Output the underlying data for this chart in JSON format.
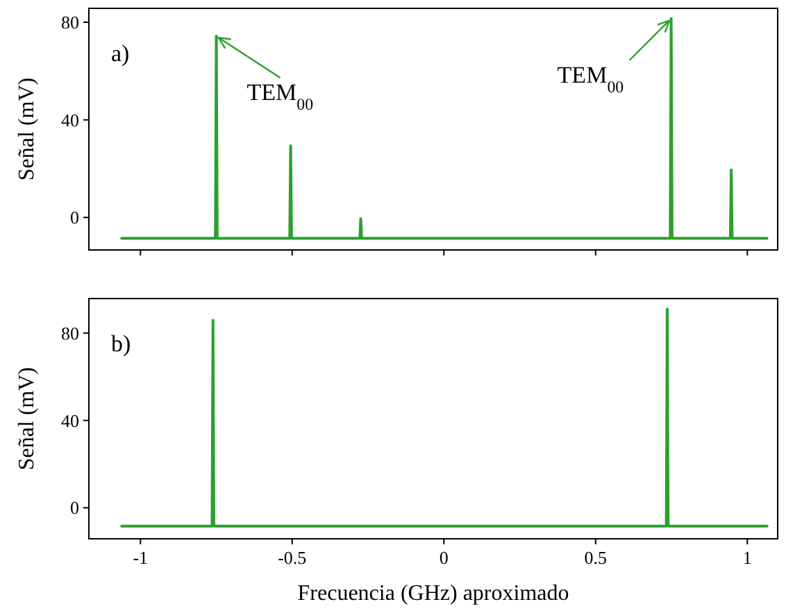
{
  "chart_data": [
    {
      "type": "line",
      "ylabel": "Señal (mV)",
      "xlim": [
        -1.17,
        1.1
      ],
      "ylim": [
        -13.3,
        85.7
      ],
      "yticks": [
        0,
        40,
        80
      ],
      "xticks": [
        -1,
        -0.5,
        0,
        0.5,
        1
      ],
      "tick_labels": "y",
      "annotations": [
        "a)",
        {
          "text": "TEM$_{00}$",
          "x": -0.75,
          "y": 74.3
        },
        {
          "text": "TEM$_{00}$",
          "x": 0.749,
          "y": 81.5
        }
      ],
      "series": [
        {
          "color": "#2ca02c",
          "x": [
            -1.062,
            -0.9,
            -0.753,
            -0.75,
            -0.747,
            -0.6,
            -0.508,
            -0.505,
            -0.502,
            -0.35,
            -0.277,
            -0.274,
            -0.271,
            0,
            0.3,
            0.6,
            0.746,
            0.749,
            0.752,
            0.85,
            0.944,
            0.947,
            0.95,
            1.065
          ],
          "values": [
            -8.5,
            -8.5,
            -8.5,
            74.3,
            -8.5,
            -8.5,
            -8.5,
            29.4,
            -8.5,
            -8.5,
            -8.5,
            -0.5,
            -8.5,
            -8.5,
            -8.5,
            -8.5,
            -8.5,
            81.5,
            -8.5,
            -8.5,
            -8.5,
            19.5,
            -8.5,
            -8.5
          ]
        }
      ]
    },
    {
      "type": "line",
      "ylabel": "Señal (mV)",
      "xlabel": "Frecuencia (GHz) aproximado",
      "xlim": [
        -1.17,
        1.1
      ],
      "ylim": [
        -14.2,
        95.8
      ],
      "yticks": [
        0,
        40,
        80
      ],
      "xticks": [
        -1,
        -0.5,
        0,
        0.5,
        1
      ],
      "annotations": [
        "b)"
      ],
      "series": [
        {
          "color": "#2ca02c",
          "x": [
            -1.062,
            -0.9,
            -0.764,
            -0.761,
            -0.758,
            -0.4,
            0,
            0.4,
            0.733,
            0.736,
            0.739,
            0.9,
            1.065
          ],
          "values": [
            -8.4,
            -8.4,
            -8.4,
            85.9,
            -8.4,
            -8.4,
            -8.4,
            -8.4,
            -8.4,
            91,
            -8.4,
            -8.4,
            -8.4
          ]
        }
      ]
    }
  ]
}
